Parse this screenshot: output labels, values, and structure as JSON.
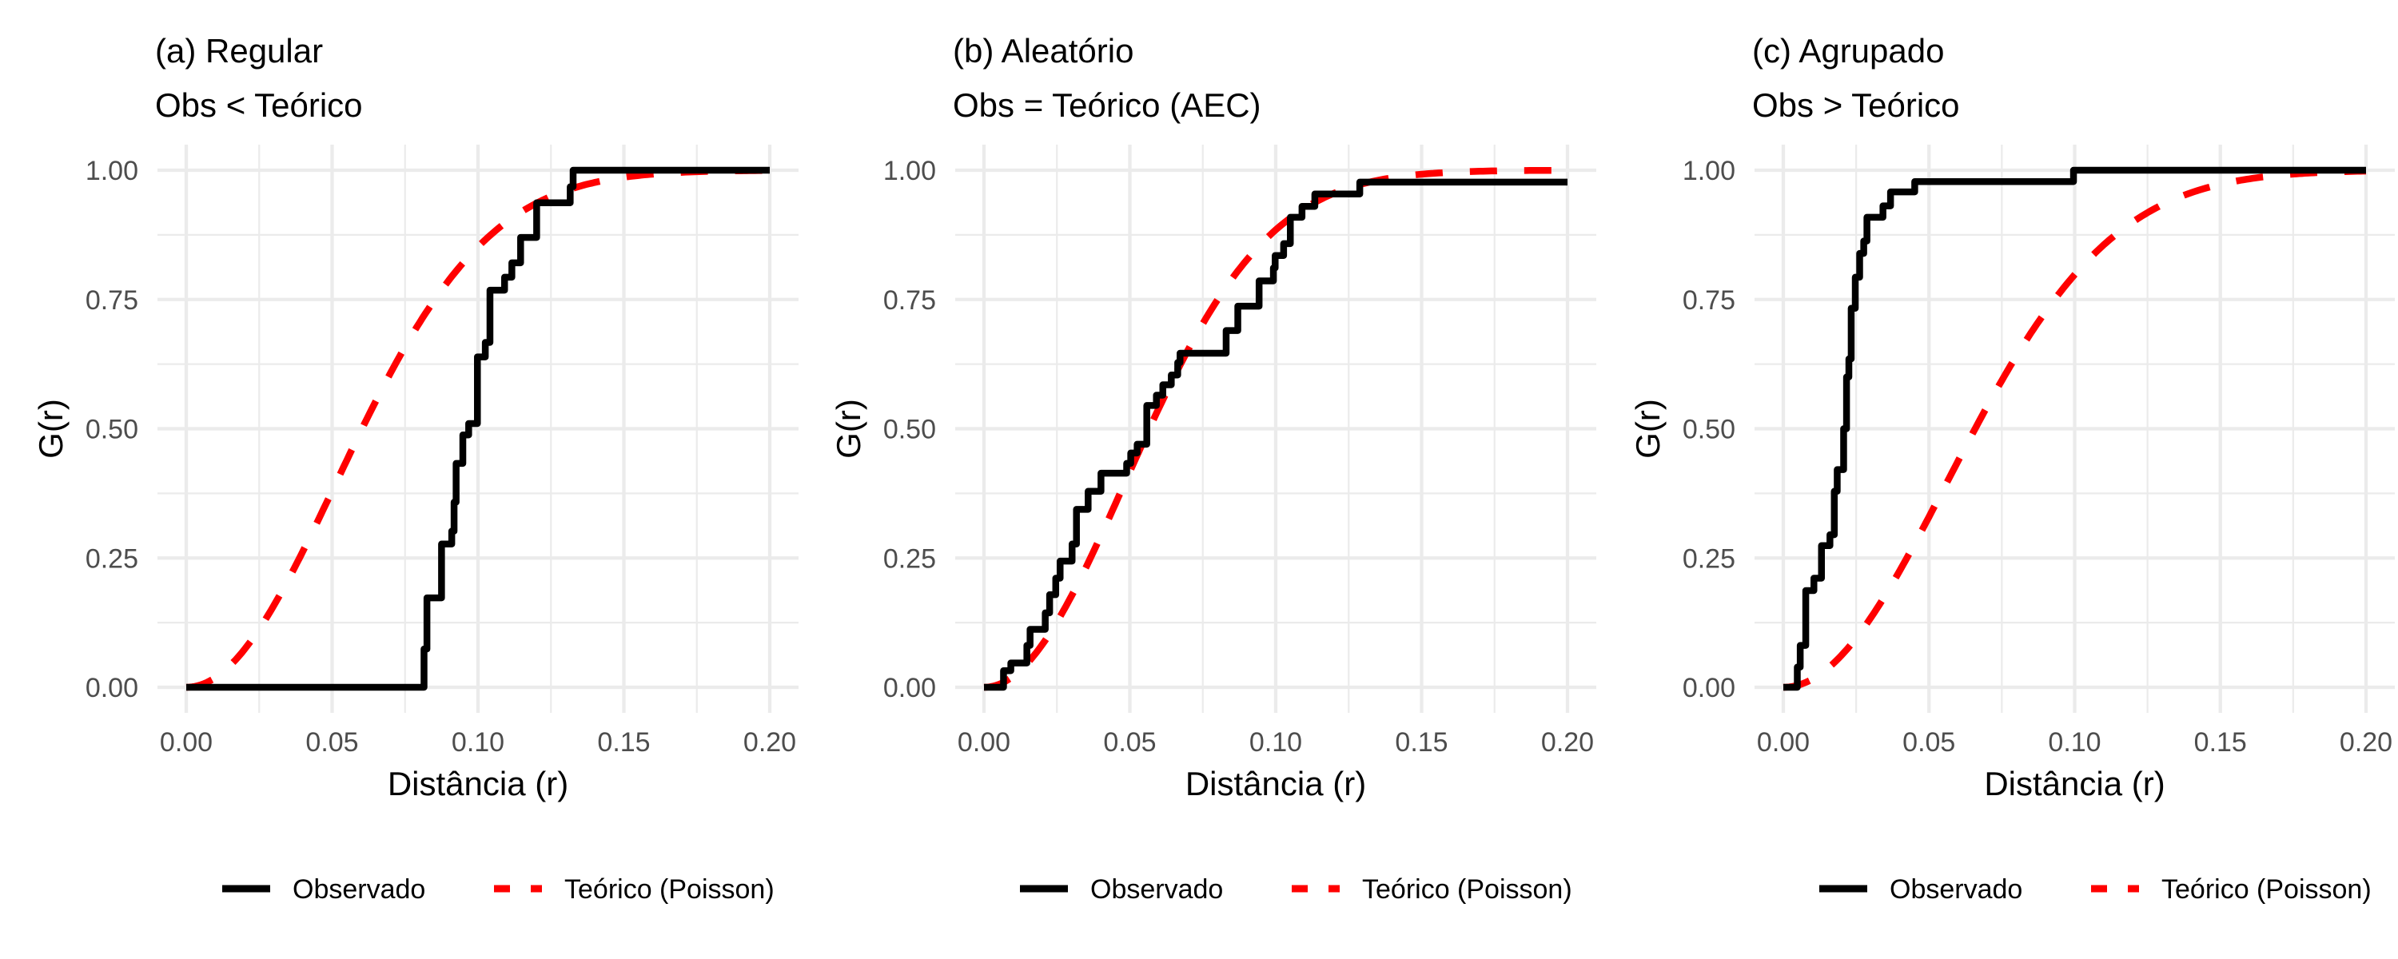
{
  "chart_data": [
    {
      "type": "line",
      "title": "(a) Regular",
      "subtitle": "Obs < Teórico",
      "xlabel": "Distância (r)",
      "ylabel": "G(r)",
      "xlim": [
        0,
        0.2
      ],
      "ylim": [
        0,
        1
      ],
      "xticks": [
        0,
        0.05,
        0.1,
        0.15,
        0.2
      ],
      "xtick_labels": [
        "0.00",
        "0.05",
        "0.10",
        "0.15",
        "0.20"
      ],
      "yticks": [
        0,
        0.25,
        0.5,
        0.75,
        1
      ],
      "ytick_labels": [
        "0.00",
        "0.25",
        "0.50",
        "0.75",
        "1.00"
      ],
      "grid": true,
      "legend": {
        "position": "bottom",
        "entries": [
          "Observado",
          "Teórico (Poisson)"
        ]
      },
      "series": [
        {
          "name": "Observado",
          "style": "step-solid",
          "color": "#000000",
          "x": [
            0,
            0.0815,
            0.0825,
            0.0835,
            0.0875,
            0.091,
            0.0918,
            0.0925,
            0.0948,
            0.0968,
            0.0998,
            0.1025,
            0.1041,
            0.1091,
            0.1116,
            0.1146,
            0.1201,
            0.1316,
            0.1326,
            0.2
          ],
          "y": [
            0,
            0.074,
            0.173,
            0.173,
            0.277,
            0.302,
            0.358,
            0.433,
            0.488,
            0.51,
            0.639,
            0.667,
            0.768,
            0.793,
            0.821,
            0.87,
            0.937,
            0.968,
            1.0,
            1.0
          ]
        },
        {
          "name": "Teórico (Poisson)",
          "style": "dashed",
          "color": "#ff0000",
          "formula": "1 - exp(-k r^2)",
          "k": 191
        }
      ]
    },
    {
      "type": "line",
      "title": "(b) Aleatório",
      "subtitle": "Obs = Teórico (AEC)",
      "xlabel": "Distância (r)",
      "ylabel": "G(r)",
      "xlim": [
        0,
        0.2
      ],
      "ylim": [
        0,
        1
      ],
      "xticks": [
        0,
        0.05,
        0.1,
        0.15,
        0.2
      ],
      "xtick_labels": [
        "0.00",
        "0.05",
        "0.10",
        "0.15",
        "0.20"
      ],
      "yticks": [
        0,
        0.25,
        0.5,
        0.75,
        1
      ],
      "ytick_labels": [
        "0.00",
        "0.25",
        "0.50",
        "0.75",
        "1.00"
      ],
      "grid": true,
      "legend": {
        "position": "bottom",
        "entries": [
          "Observado",
          "Teórico (Poisson)"
        ]
      },
      "series": [
        {
          "name": "Observado",
          "style": "step-solid",
          "color": "#000000",
          "x": [
            0,
            0.0067,
            0.0092,
            0.0147,
            0.0158,
            0.021,
            0.0225,
            0.0246,
            0.0261,
            0.0302,
            0.0317,
            0.0357,
            0.0401,
            0.0489,
            0.0503,
            0.0525,
            0.0558,
            0.0591,
            0.0613,
            0.0642,
            0.0664,
            0.0672,
            0.083,
            0.087,
            0.0943,
            0.0992,
            0.0998,
            0.1027,
            0.105,
            0.109,
            0.1134,
            0.1288,
            0.2
          ],
          "y": [
            0,
            0.032,
            0.047,
            0.081,
            0.112,
            0.144,
            0.179,
            0.211,
            0.244,
            0.277,
            0.344,
            0.379,
            0.414,
            0.433,
            0.453,
            0.47,
            0.545,
            0.565,
            0.585,
            0.604,
            0.628,
            0.646,
            0.69,
            0.737,
            0.786,
            0.811,
            0.835,
            0.858,
            0.909,
            0.93,
            0.954,
            0.977,
            0.977
          ]
        },
        {
          "name": "Teórico (Poisson)",
          "style": "dashed",
          "color": "#ff0000",
          "formula": "1 - exp(-k r^2)",
          "k": 216
        }
      ]
    },
    {
      "type": "line",
      "title": "(c) Agrupado",
      "subtitle": "Obs > Teórico",
      "xlabel": "Distância (r)",
      "ylabel": "G(r)",
      "xlim": [
        0,
        0.2
      ],
      "ylim": [
        0,
        1
      ],
      "xticks": [
        0,
        0.05,
        0.1,
        0.15,
        0.2
      ],
      "xtick_labels": [
        "0.00",
        "0.05",
        "0.10",
        "0.15",
        "0.20"
      ],
      "yticks": [
        0,
        0.25,
        0.5,
        0.75,
        1
      ],
      "ytick_labels": [
        "0.00",
        "0.25",
        "0.50",
        "0.75",
        "1.00"
      ],
      "grid": true,
      "legend": {
        "position": "bottom",
        "entries": [
          "Observado",
          "Teórico (Poisson)"
        ]
      },
      "series": [
        {
          "name": "Observado",
          "style": "step-solid",
          "color": "#000000",
          "x": [
            0,
            0.0048,
            0.0058,
            0.0077,
            0.0105,
            0.0131,
            0.016,
            0.0175,
            0.0185,
            0.0207,
            0.0217,
            0.0225,
            0.0233,
            0.0247,
            0.0262,
            0.0276,
            0.0287,
            0.0342,
            0.0368,
            0.0451,
            0.0996,
            0.2
          ],
          "y": [
            0,
            0.039,
            0.081,
            0.187,
            0.211,
            0.274,
            0.295,
            0.379,
            0.421,
            0.5,
            0.6,
            0.635,
            0.733,
            0.793,
            0.839,
            0.863,
            0.909,
            0.931,
            0.958,
            0.978,
            1.0,
            1.0
          ]
        },
        {
          "name": "Teórico (Poisson)",
          "style": "dashed",
          "color": "#ff0000",
          "formula": "1 - exp(-k r^2)",
          "k": 160
        }
      ]
    }
  ]
}
